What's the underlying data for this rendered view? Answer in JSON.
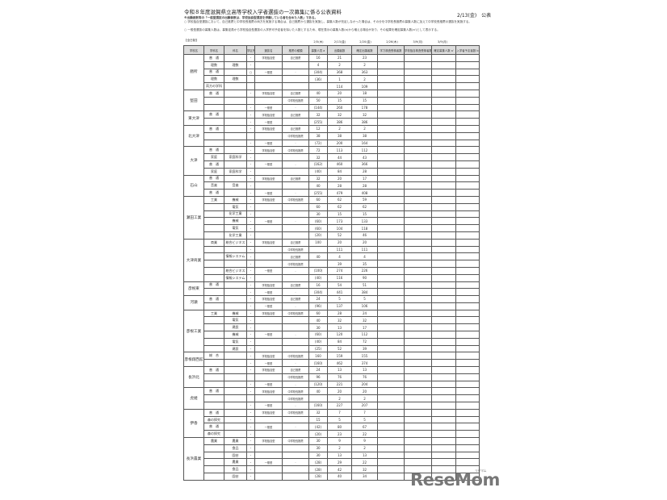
{
  "title": "令和８年度滋賀県立高等学校入学者選抜の一次募集に係る公表資料",
  "published": "2/13(金)　公表",
  "notes": [
    "※出願者数等の「一般型選抜の出願者数は、学校独自型選抜を併願している者を含めた人数」である。",
    "○ 学校独自型選抜において、自己推薦と中学校長推薦の両方を実施する場合は、自己推薦から選抜を実施し、募集人数が充足しなかった場合は、その分を中学校長推薦の募集人数に加えて中学校長推薦の選抜を実施する。",
    "○ 一般型選抜の募集人数は、募集定員から学校独自型選抜の入学許可予定者を除いた人数とするため、現在表示の募集人数(a)から増える場合があり、その結果を確定募集人数(a')として表示する。"
  ],
  "section": "【全日制】",
  "dates": [
    "2/5(木)",
    "2/13(金)",
    "2/20(金)",
    "2/26(木)",
    "3/9(月)",
    "3/9(月)"
  ],
  "headers": [
    "学校名",
    "学科名",
    "科名",
    "学区外",
    "選抜名",
    "推薦の種類",
    "募集人員 a",
    "出願者数",
    "確定出願者数",
    "学力検査受検者数",
    "学校独自検査受検者数",
    "確定募集人数 a'",
    "入学者予定者数 b"
  ],
  "schools": [
    {
      "name": "膳所",
      "rows": [
        [
          "普　通",
          "",
          "-",
          "学校独自型",
          "自己推薦",
          "16",
          "21",
          "23"
        ],
        [
          "理数",
          "理数",
          "-",
          "",
          "",
          "4",
          "2",
          "2"
        ],
        [
          "普　通",
          "",
          "○",
          "一般型",
          "-",
          "(304)",
          "368",
          "363"
        ],
        [
          "理数",
          "理数",
          "",
          "",
          "",
          "(36)",
          "1",
          "2"
        ],
        [
          "両方の学科",
          "",
          "",
          "",
          "",
          "",
          "114",
          "109"
        ]
      ]
    },
    {
      "name": "堅田",
      "rows": [
        [
          "普　通",
          "",
          "-",
          "学校独自型",
          "自己推薦",
          "40",
          "20",
          "18"
        ],
        [
          "",
          "",
          "",
          "",
          "中学校長推薦",
          "50",
          "15",
          "15"
        ],
        [
          "",
          "",
          "-",
          "一般型",
          "-",
          "(144)",
          "260",
          "178"
        ]
      ]
    },
    {
      "name": "東大津",
      "rows": [
        [
          "普　通",
          "",
          "-",
          "学校独自型",
          "自己推薦",
          "32",
          "32",
          "32"
        ],
        [
          "",
          "",
          "-",
          "一般型",
          "-",
          "(255)",
          "386",
          "386"
        ]
      ]
    },
    {
      "name": "北大津",
      "rows": [
        [
          "普　通",
          "",
          "-",
          "学校独自型",
          "自己推薦",
          "12",
          "2",
          "2"
        ],
        [
          "",
          "",
          "",
          "",
          "中学校長推薦",
          "38",
          "38",
          "38"
        ],
        [
          "",
          "",
          "-",
          "一般型",
          "-",
          "(72)",
          "200",
          "164"
        ]
      ]
    },
    {
      "name": "大津",
      "rows": [
        [
          "普　通",
          "",
          "-",
          "学校独自型",
          "中学校長推薦",
          "72",
          "113",
          "112"
        ],
        [
          "家庭",
          "家庭科学",
          "-",
          "",
          "",
          "32",
          "44",
          "43"
        ],
        [
          "普　通",
          "",
          "-",
          "一般型",
          "-",
          "(162)",
          "460",
          "366"
        ],
        [
          "家庭",
          "家庭科学",
          "-",
          "",
          "",
          "(40)",
          "84",
          "28"
        ]
      ]
    },
    {
      "name": "石山",
      "rows": [
        [
          "普　通",
          "",
          "-",
          "学校独自型",
          "自己推薦",
          "32",
          "20",
          "17"
        ],
        [
          "音楽",
          "音楽",
          "-",
          "",
          "",
          "40",
          "28",
          "28"
        ],
        [
          "普　通",
          "",
          "-",
          "一般型",
          "-",
          "(255)",
          "479",
          "408"
        ]
      ]
    },
    {
      "name": "瀬田工業",
      "rows": [
        [
          "工業",
          "機械",
          "-",
          "学校独自型",
          "中学校長推薦",
          "60",
          "62",
          "59"
        ],
        [
          "",
          "電気",
          "-",
          "",
          "",
          "60",
          "62",
          "62"
        ],
        [
          "",
          "化学工業",
          "-",
          "",
          "",
          "30",
          "15",
          "15"
        ],
        [
          "",
          "機械",
          "-",
          "一般型",
          "-",
          "(60)",
          "173",
          "133"
        ],
        [
          "",
          "電気",
          "-",
          "",
          "",
          "(60)",
          "104",
          "118"
        ],
        [
          "",
          "化学工業",
          "-",
          "",
          "",
          "(20)",
          "52",
          "46"
        ]
      ]
    },
    {
      "name": "大津商業",
      "rows": [
        [
          "商業",
          "総合ビジネス",
          "-",
          "学校独自型",
          "自己推薦",
          "100",
          "20",
          "20"
        ],
        [
          "",
          "",
          "-",
          "",
          "中学校長推薦",
          "",
          "111",
          "111"
        ],
        [
          "",
          "情報システム",
          "-",
          "",
          "自己推薦",
          "40",
          "4",
          "4"
        ],
        [
          "",
          "",
          "-",
          "",
          "中学校長推薦",
          "",
          "39",
          "35"
        ],
        [
          "",
          "総合ビジネス",
          "-",
          "一般型",
          "-",
          "(100)",
          "274",
          "226"
        ],
        [
          "",
          "情報システム",
          "-",
          "",
          "",
          "(40)",
          "116",
          "90"
        ]
      ]
    },
    {
      "name": "彦根東",
      "rows": [
        [
          "普　通",
          "",
          "-",
          "学校独自型",
          "自己推薦",
          "16",
          "54",
          "51"
        ],
        [
          "",
          "",
          "-",
          "一般型",
          "-",
          "(304)",
          "441",
          "384"
        ]
      ]
    },
    {
      "name": "河瀬",
      "rows": [
        [
          "普　通",
          "",
          "-",
          "学校独自型",
          "自己推薦",
          "24",
          "5",
          "5"
        ],
        [
          "",
          "",
          "-",
          "一般型",
          "-",
          "(96)",
          "137",
          "106"
        ]
      ]
    },
    {
      "name": "彦根工業",
      "rows": [
        [
          "工業",
          "機械",
          "-",
          "学校独自型",
          "中学校長推薦",
          "60",
          "28",
          "24"
        ],
        [
          "",
          "電気",
          "-",
          "",
          "",
          "40",
          "32",
          "32"
        ],
        [
          "",
          "建設",
          "-",
          "",
          "",
          "30",
          "13",
          "17"
        ],
        [
          "",
          "機械",
          "-",
          "一般型",
          "-",
          "(60)",
          "120",
          "112"
        ],
        [
          "",
          "電気",
          "-",
          "",
          "",
          "(40)",
          "84",
          "72"
        ],
        [
          "",
          "建設",
          "-",
          "",
          "",
          "(25)",
          "52",
          "39"
        ]
      ]
    },
    {
      "name": "彦根翔西館",
      "rows": [
        [
          "総　合",
          "",
          "-",
          "学校独自型",
          "中学校長推薦",
          "160",
          "159",
          "155"
        ],
        [
          "",
          "",
          "-",
          "一般型",
          "-",
          "(160)",
          "462",
          "374"
        ]
      ]
    },
    {
      "name": "長浜北",
      "rows": [
        [
          "普　通",
          "",
          "-",
          "学校独自型",
          "自己推薦",
          "24",
          "13",
          "13"
        ],
        [
          "",
          "",
          "",
          "",
          "中学校長推薦",
          "96",
          "76",
          "76"
        ],
        [
          "",
          "",
          "-",
          "一般型",
          "-",
          "(120)",
          "221",
          "204"
        ]
      ]
    },
    {
      "name": "虎姫",
      "rows": [
        [
          "普　通",
          "",
          "-",
          "学校独自型",
          "中学校長推薦",
          "40",
          "20",
          "20"
        ],
        [
          "",
          "",
          "",
          "",
          "中学校長推薦",
          "",
          "2",
          "2"
        ],
        [
          "",
          "",
          "-",
          "一般型",
          "-",
          "(160)",
          "227",
          "207"
        ]
      ]
    },
    {
      "name": "伊香",
      "rows": [
        [
          "普　通",
          "",
          "-",
          "学校独自型",
          "中学校長推薦",
          "32",
          "7",
          "7"
        ],
        [
          "森の探究",
          "",
          "-",
          "",
          "",
          "15",
          "5",
          "5"
        ],
        [
          "普　通",
          "",
          "-",
          "一般型",
          "-",
          "(42)",
          "80",
          "67"
        ],
        [
          "森の探究",
          "",
          "-",
          "",
          "",
          "(20)",
          "23",
          "22"
        ]
      ]
    },
    {
      "name": "長浜農業",
      "rows": [
        [
          "農業",
          "農業",
          "-",
          "学校独自型",
          "中学校長推薦",
          "30",
          "9",
          "9"
        ],
        [
          "",
          "食品",
          "-",
          "",
          "",
          "30",
          "2",
          "2"
        ],
        [
          "",
          "園芸",
          "-",
          "",
          "",
          "30",
          "13",
          "13"
        ],
        [
          "",
          "農業",
          "-",
          "一般型",
          "-",
          "(28)",
          "29",
          "22"
        ],
        [
          "",
          "食品",
          "-",
          "",
          "",
          "(28)",
          "42",
          "32"
        ],
        [
          "",
          "園芸",
          "-",
          "",
          "",
          "(28)",
          "40",
          "34"
        ]
      ]
    }
  ],
  "logo": "ReseMom"
}
